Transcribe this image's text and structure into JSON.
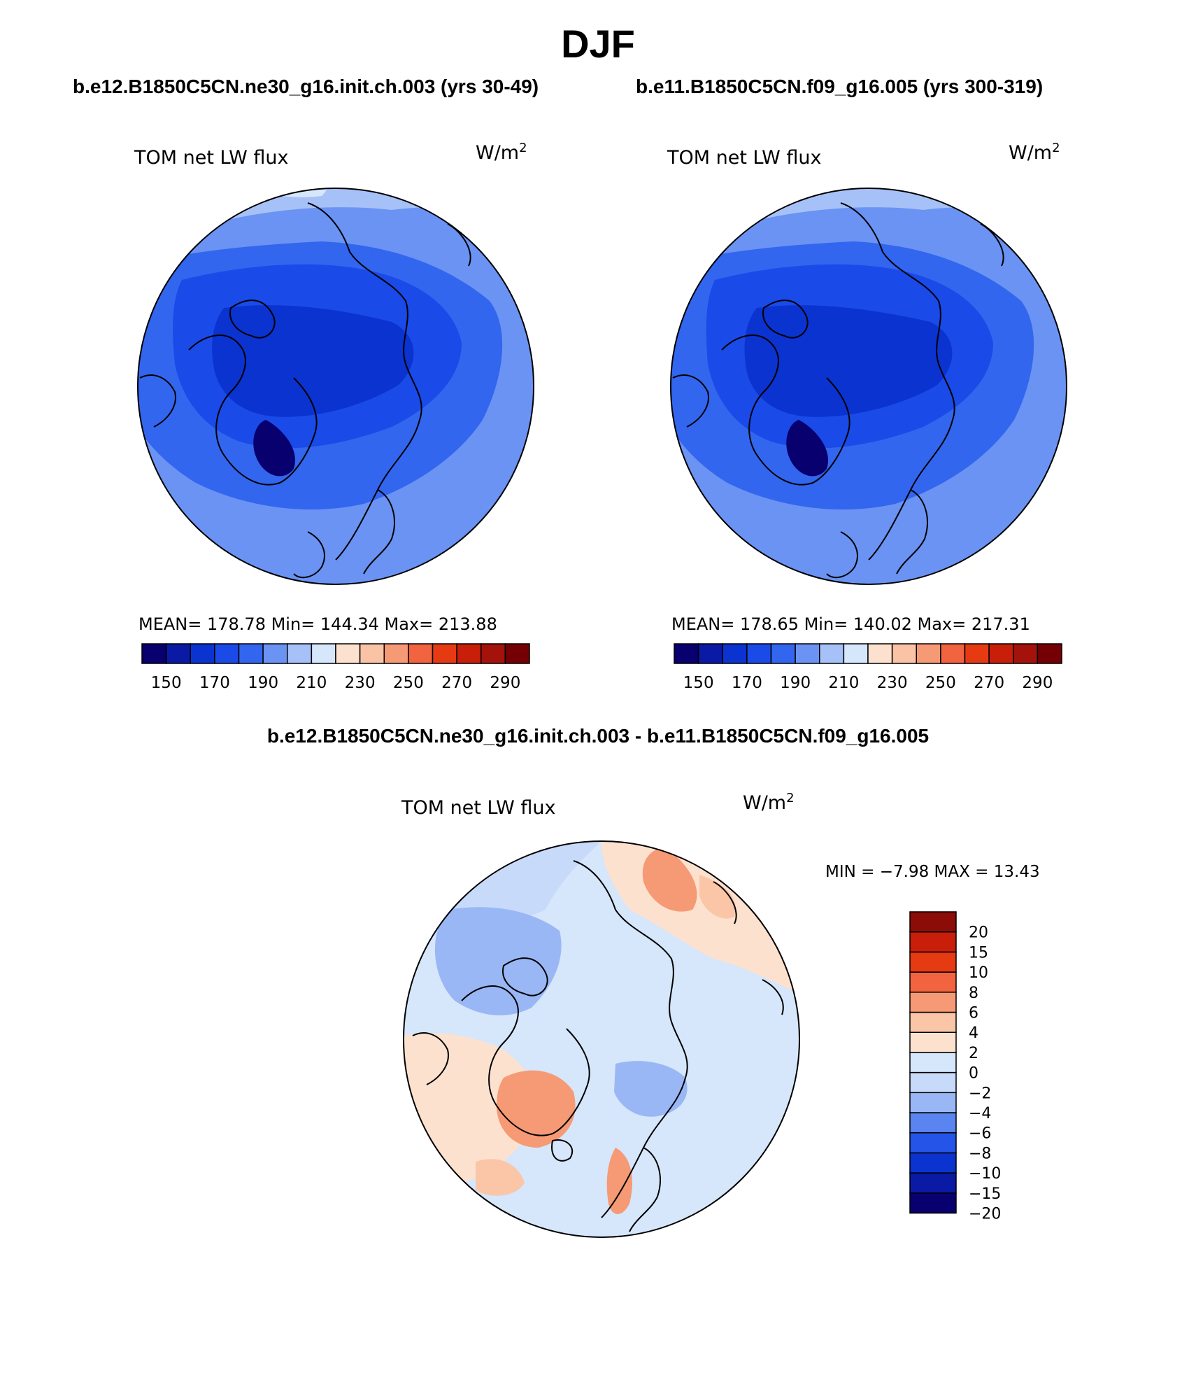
{
  "page": {
    "title": "DJF",
    "left_case_title": "b.e12.B1850C5CN.ne30_g16.init.ch.003 (yrs 30-49)",
    "right_case_title": "b.e11.B1850C5CN.f09_g16.005 (yrs 300-319)",
    "diff_title": "b.e12.B1850C5CN.ne30_g16.init.ch.003 - b.e11.B1850C5CN.f09_g16.005"
  },
  "panels": {
    "left": {
      "variable": "TOM net LW flux",
      "units": "W/m",
      "units_exp": "2",
      "stats": "MEAN= 178.78   Min= 144.34   Max= 213.88"
    },
    "right": {
      "variable": "TOM net LW flux",
      "units": "W/m",
      "units_exp": "2",
      "stats": "MEAN= 178.65   Min= 140.02   Max= 217.31"
    },
    "diff": {
      "variable": "TOM net LW flux",
      "units": "W/m",
      "units_exp": "2",
      "stats": "MIN =   −7.98 MAX =   13.43"
    }
  },
  "colorbars": {
    "main": {
      "colors": [
        "#08006e",
        "#0a1aa5",
        "#0a33d0",
        "#1a4ae8",
        "#3366ee",
        "#6a93f3",
        "#a6c1f7",
        "#d6e6fb",
        "#fde1cf",
        "#fac3a6",
        "#f69a75",
        "#f1643f",
        "#e63a13",
        "#c81e0a",
        "#a4120c",
        "#740005"
      ],
      "labels": [
        "150",
        "170",
        "190",
        "210",
        "230",
        "250",
        "270",
        "290"
      ]
    },
    "diff": {
      "colors": [
        "#08006e",
        "#0a1aa5",
        "#0a33d0",
        "#2455e8",
        "#5a85f0",
        "#9ab7f5",
        "#c8daf9",
        "#d6e6fb",
        "#fde1cf",
        "#fbc6a8",
        "#f69a75",
        "#f1643f",
        "#e63a13",
        "#c81e0a",
        "#8c0c08"
      ],
      "labels": [
        "20",
        "15",
        "10",
        "8",
        "6",
        "4",
        "2",
        "0",
        "−2",
        "−4",
        "−6",
        "−8",
        "−10",
        "−15",
        "−20"
      ]
    }
  }
}
